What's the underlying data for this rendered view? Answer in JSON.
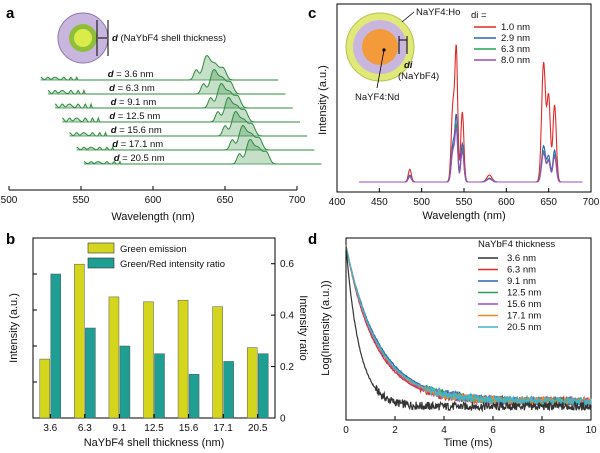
{
  "panel_labels": {
    "a": "a",
    "b": "b",
    "c": "c",
    "d": "d"
  },
  "colors": {
    "green_peak": "#2e8b3e",
    "green_bar": "#d4d61e",
    "teal_bar": "#1f9e93",
    "c_1": "#e02a2a",
    "c_2": "#2a62b8",
    "c_3": "#27a05a",
    "c_4": "#9a4cc0",
    "d_1": "#333333",
    "d_2": "#e02a2a",
    "d_3": "#2a62b8",
    "d_4": "#27a05a",
    "d_5": "#9a4cc0",
    "d_6": "#f08a1c",
    "d_7": "#3fb6c8"
  },
  "chart_data": [
    {
      "panel": "a",
      "type": "line",
      "xlabel": "Wavelength (nm)",
      "xlim": [
        500,
        700
      ],
      "xticks": [
        "500",
        "550",
        "600",
        "650",
        "700"
      ],
      "annotation": "d (NaYbF4 shell thickness)",
      "annotation_d": "d",
      "annotation_rest": "(NaYbF4 shell thickness)",
      "series": [
        {
          "name": "d = 3.6 nm",
          "label_d": "d",
          "label_rest": "= 3.6 nm",
          "green": 0.35,
          "red": 1.0
        },
        {
          "name": "d = 6.3 nm",
          "label_d": "d",
          "label_rest": "= 6.3 nm",
          "green": 0.45,
          "red": 1.0
        },
        {
          "name": "d = 9.1 nm",
          "label_d": "d",
          "label_rest": "= 9.1 nm",
          "green": 0.5,
          "red": 1.0
        },
        {
          "name": "d = 12.5 nm",
          "label_d": "d",
          "label_rest": "= 12.5 nm",
          "green": 0.5,
          "red": 1.0
        },
        {
          "name": "d = 15.6 nm",
          "label_d": "d",
          "label_rest": "= 15.6 nm",
          "green": 0.42,
          "red": 1.0
        },
        {
          "name": "d = 17.1 nm",
          "label_d": "d",
          "label_rest": "= 17.1 nm",
          "green": 0.35,
          "red": 1.0
        },
        {
          "name": "d = 20.5 nm",
          "label_d": "d",
          "label_rest": "= 20.5 nm",
          "green": 0.3,
          "red": 1.0
        }
      ]
    },
    {
      "panel": "b",
      "type": "bar",
      "xlabel": "NaYbF4 shell thickness (nm)",
      "ylabel_left": "Intensity (a.u.)",
      "ylabel_right": "Intensity ratio",
      "categories": [
        "3.6",
        "6.3",
        "9.1",
        "12.5",
        "15.6",
        "17.1",
        "20.5"
      ],
      "yticks_right": [
        "0",
        "0.2",
        "0.4",
        "0.6"
      ],
      "ylim_right": [
        0,
        0.7
      ],
      "series": [
        {
          "name": "Green emission",
          "axis": "left",
          "values": [
            0.36,
            0.94,
            0.74,
            0.71,
            0.72,
            0.68,
            0.43
          ]
        },
        {
          "name": "Green/Red intensity ratio",
          "axis": "right",
          "values": [
            0.56,
            0.35,
            0.28,
            0.25,
            0.17,
            0.22,
            0.25
          ]
        }
      ]
    },
    {
      "panel": "c",
      "type": "line",
      "xlabel": "Wavelength (nm)",
      "ylabel": "Intensity (a.u.)",
      "xlim": [
        400,
        700
      ],
      "xticks": [
        "400",
        "450",
        "500",
        "550",
        "600",
        "650",
        "700"
      ],
      "legend_title": "di =",
      "annotations": {
        "ho": "NaYF4:Ho",
        "nd": "NaYF4:Nd",
        "di": "di",
        "yb": "(NaYbF4)"
      },
      "series": [
        {
          "name": "1.0 nm",
          "scale": 1.0
        },
        {
          "name": "2.9 nm",
          "scale": 0.55
        },
        {
          "name": "6.3 nm",
          "scale": 0.45
        },
        {
          "name": "8.0 nm",
          "scale": 0.4
        }
      ]
    },
    {
      "panel": "d",
      "type": "line",
      "xlabel": "Time (ms)",
      "ylabel": "Log(Intensity (a.u.))",
      "xlim": [
        0,
        10
      ],
      "xticks": [
        "0",
        "2",
        "4",
        "6",
        "8",
        "10"
      ],
      "legend_title": "NaYbF4 thickness",
      "series": [
        {
          "name": "3.6 nm",
          "tau": 0.55
        },
        {
          "name": "6.3 nm",
          "tau": 1.2
        },
        {
          "name": "9.1 nm",
          "tau": 1.35
        },
        {
          "name": "12.5 nm",
          "tau": 1.3
        },
        {
          "name": "15.6 nm",
          "tau": 1.25
        },
        {
          "name": "17.1 nm",
          "tau": 1.28
        },
        {
          "name": "20.5 nm",
          "tau": 1.3
        }
      ]
    }
  ]
}
